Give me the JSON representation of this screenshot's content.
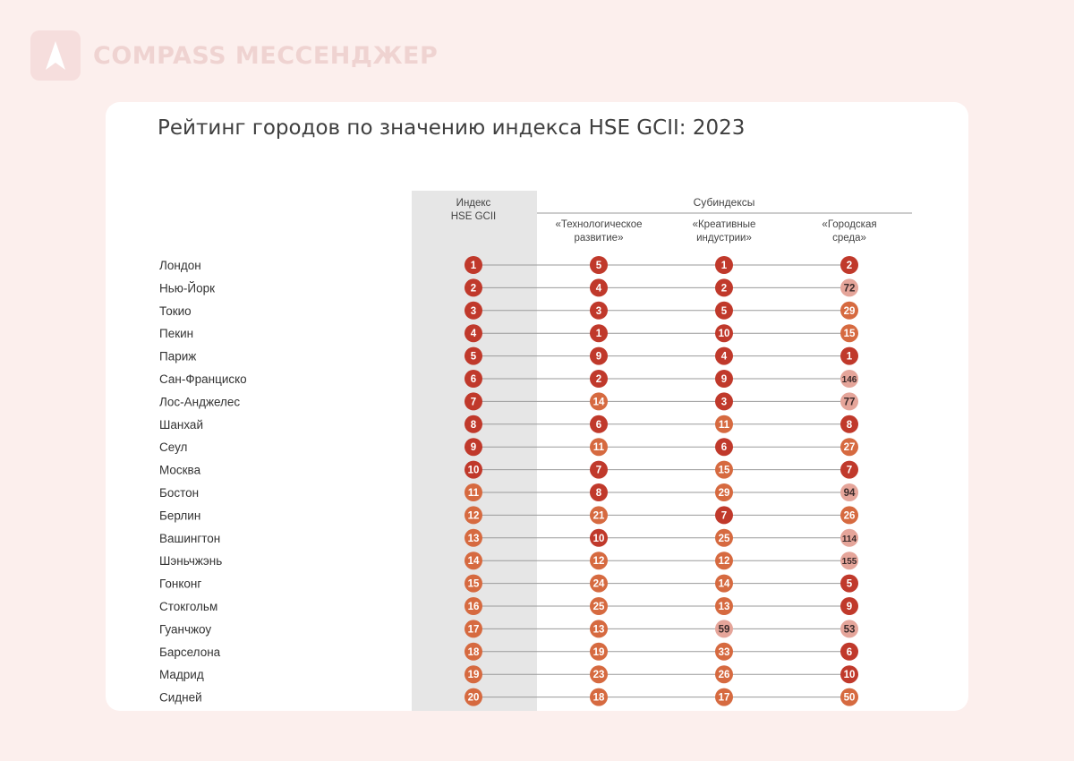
{
  "brand": {
    "name": "COMPASS МЕССЕНДЖЕР",
    "logo_icon": "compass-logo-icon"
  },
  "colors": {
    "page_bg": "#fcefed",
    "card_bg": "#ffffff",
    "column_shade": "#e6e6e6",
    "rank_dark": "#c0392b",
    "rank_mid": "#d66a40",
    "rank_light": "#e5a59a"
  },
  "chart_data": {
    "type": "table",
    "title": "Рейтинг городов по значению индекса HSE GCII: 2023",
    "group_header": "Субиндексы",
    "columns": [
      {
        "key": "index",
        "label_lines": [
          "Индекс",
          "HSE GCII"
        ]
      },
      {
        "key": "tech",
        "label_lines": [
          "«Технологическое",
          "развитие»"
        ]
      },
      {
        "key": "creative",
        "label_lines": [
          "«Креативные",
          "индустрии»"
        ]
      },
      {
        "key": "urban",
        "label_lines": [
          "«Городская",
          "среда»"
        ]
      }
    ],
    "rows": [
      {
        "city": "Лондон",
        "values": [
          1,
          5,
          1,
          2
        ]
      },
      {
        "city": "Нью-Йорк",
        "values": [
          2,
          4,
          2,
          72
        ]
      },
      {
        "city": "Токио",
        "values": [
          3,
          3,
          5,
          29
        ]
      },
      {
        "city": "Пекин",
        "values": [
          4,
          1,
          10,
          15
        ]
      },
      {
        "city": "Париж",
        "values": [
          5,
          9,
          4,
          1
        ]
      },
      {
        "city": "Сан-Франциско",
        "values": [
          6,
          2,
          9,
          146
        ]
      },
      {
        "city": "Лос-Анджелес",
        "values": [
          7,
          14,
          3,
          77
        ]
      },
      {
        "city": "Шанхай",
        "values": [
          8,
          6,
          11,
          8
        ]
      },
      {
        "city": "Сеул",
        "values": [
          9,
          11,
          6,
          27
        ]
      },
      {
        "city": "Москва",
        "values": [
          10,
          7,
          15,
          7
        ]
      },
      {
        "city": "Бостон",
        "values": [
          11,
          8,
          29,
          94
        ]
      },
      {
        "city": "Берлин",
        "values": [
          12,
          21,
          7,
          26
        ]
      },
      {
        "city": "Вашингтон",
        "values": [
          13,
          10,
          25,
          114
        ]
      },
      {
        "city": "Шэньчжэнь",
        "values": [
          14,
          12,
          12,
          155
        ]
      },
      {
        "city": "Гонконг",
        "values": [
          15,
          24,
          14,
          5
        ]
      },
      {
        "city": "Стокгольм",
        "values": [
          16,
          25,
          13,
          9
        ]
      },
      {
        "city": "Гуанчжоу",
        "values": [
          17,
          13,
          59,
          53
        ]
      },
      {
        "city": "Барселона",
        "values": [
          18,
          19,
          33,
          6
        ]
      },
      {
        "city": "Мадрид",
        "values": [
          19,
          23,
          26,
          10
        ]
      },
      {
        "city": "Сидней",
        "values": [
          20,
          18,
          17,
          50
        ]
      }
    ]
  }
}
